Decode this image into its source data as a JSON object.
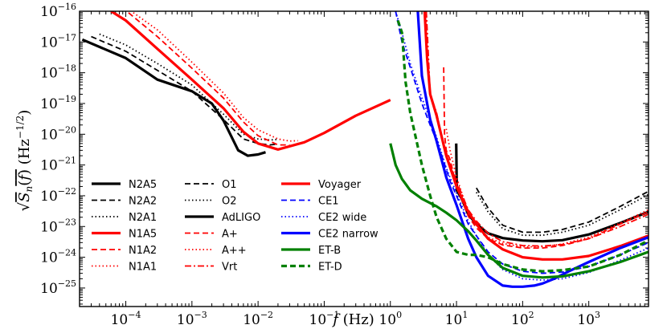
{
  "chart_data": {
    "type": "line",
    "title": "",
    "xlabel": "f (Hz)",
    "ylabel": "√S_n(f) (Hz^−1/2)",
    "xscale": "log",
    "yscale": "log",
    "xlim": [
      2e-05,
      8000
    ],
    "ylim": [
      2.5e-26,
      1e-16
    ],
    "x_tick_labels": [
      {
        "value": 0.0001,
        "base": "10",
        "exp": "−4"
      },
      {
        "value": 0.001,
        "base": "10",
        "exp": "−3"
      },
      {
        "value": 0.01,
        "base": "10",
        "exp": "−2"
      },
      {
        "value": 0.1,
        "base": "10",
        "exp": "−1"
      },
      {
        "value": 1,
        "base": "10",
        "exp": "0"
      },
      {
        "value": 10,
        "base": "10",
        "exp": "1"
      },
      {
        "value": 100,
        "base": "10",
        "exp": "2"
      },
      {
        "value": 1000,
        "base": "10",
        "exp": "3"
      }
    ],
    "y_tick_labels": [
      {
        "value": 1e-16,
        "base": "10",
        "exp": "−16"
      },
      {
        "value": 1e-17,
        "base": "10",
        "exp": "−17"
      },
      {
        "value": 1e-18,
        "base": "10",
        "exp": "−18"
      },
      {
        "value": 1e-19,
        "base": "10",
        "exp": "−19"
      },
      {
        "value": 1e-20,
        "base": "10",
        "exp": "−20"
      },
      {
        "value": 1e-21,
        "base": "10",
        "exp": "−21"
      },
      {
        "value": 1e-22,
        "base": "10",
        "exp": "−22"
      },
      {
        "value": 1e-23,
        "base": "10",
        "exp": "−23"
      },
      {
        "value": 1e-24,
        "base": "10",
        "exp": "−24"
      },
      {
        "value": 1e-25,
        "base": "10",
        "exp": "−25"
      }
    ],
    "series": [
      {
        "name": "N2A5",
        "color": "#000000",
        "style": "solid",
        "width": "thick",
        "x": [
          2.2e-05,
          0.0001,
          0.0003,
          0.001,
          0.002,
          0.003,
          0.005,
          0.007,
          0.01,
          0.013
        ],
        "y": [
          1.2e-17,
          3e-18,
          6e-19,
          2.5e-19,
          1e-19,
          2.8e-20,
          3e-21,
          2e-21,
          2.2e-21,
          2.6e-21
        ]
      },
      {
        "name": "N2A2",
        "color": "#000000",
        "style": "dashed",
        "width": "normal",
        "x": [
          3e-05,
          0.0001,
          0.0003,
          0.001,
          0.003,
          0.006,
          0.01,
          0.015,
          0.02
        ],
        "y": [
          1.5e-17,
          5e-18,
          1.2e-18,
          2.5e-19,
          3e-20,
          7e-21,
          5e-21,
          4.5e-21,
          4.8e-21
        ]
      },
      {
        "name": "N2A1",
        "color": "#000000",
        "style": "dotted",
        "width": "normal",
        "x": [
          4e-05,
          0.0001,
          0.0003,
          0.001,
          0.003,
          0.006,
          0.01,
          0.015,
          0.02
        ],
        "y": [
          1.8e-17,
          8e-18,
          2e-18,
          4e-19,
          4.5e-20,
          1e-20,
          7e-21,
          6.5e-21,
          6.8e-21
        ]
      },
      {
        "name": "N1A5",
        "color": "#ff0000",
        "style": "solid",
        "width": "thick",
        "x": [
          6e-05,
          0.0001,
          0.0003,
          0.001,
          0.003,
          0.006,
          0.01,
          0.02,
          0.05,
          0.1,
          0.3,
          1.0
        ],
        "y": [
          1e-16,
          5e-17,
          6e-18,
          6e-19,
          7e-20,
          1.2e-20,
          5e-21,
          3.2e-21,
          5.5e-21,
          1.1e-20,
          4e-20,
          1.3e-19
        ]
      },
      {
        "name": "N1A2",
        "color": "#ff0000",
        "style": "dashed",
        "width": "normal",
        "x": [
          0.00011,
          0.0003,
          0.001,
          0.003,
          0.006,
          0.01,
          0.02,
          0.03
        ],
        "y": [
          9e-17,
          1.5e-17,
          1.4e-18,
          1.5e-19,
          2.5e-20,
          9e-21,
          4.5e-21,
          4.5e-21
        ]
      },
      {
        "name": "N1A1",
        "color": "#ff0000",
        "style": "dotted",
        "width": "normal",
        "x": [
          0.00013,
          0.0003,
          0.001,
          0.003,
          0.006,
          0.01,
          0.02,
          0.03,
          0.04
        ],
        "y": [
          9e-17,
          2.5e-17,
          2.2e-18,
          2.2e-19,
          3.5e-20,
          1.4e-20,
          7e-21,
          6e-21,
          6.2e-21
        ]
      },
      {
        "name": "O1",
        "color": "#000000",
        "style": "dashed",
        "width": "normal",
        "x": [
          20,
          30,
          50,
          100,
          200,
          400,
          1000,
          3000,
          8000
        ],
        "y": [
          1.8e-22,
          4e-23,
          1.1e-23,
          6.5e-24,
          6.5e-24,
          8e-24,
          1.4e-23,
          4.5e-23,
          1.4e-22
        ]
      },
      {
        "name": "O2",
        "color": "#000000",
        "style": "dotted",
        "width": "normal",
        "x": [
          20,
          30,
          50,
          100,
          200,
          400,
          1000,
          3000,
          8000
        ],
        "y": [
          1.3e-22,
          3e-23,
          8.5e-24,
          5.2e-24,
          5.2e-24,
          6.5e-24,
          1.1e-23,
          3.5e-23,
          1.1e-22
        ]
      },
      {
        "name": "AdLIGO",
        "color": "#000000",
        "style": "solid",
        "width": "thick",
        "x": [
          9.9,
          10,
          10.1,
          12,
          15,
          20,
          30,
          50,
          100,
          200,
          400,
          1000,
          3000,
          8000
        ],
        "y": [
          5e-21,
          8e-22,
          1.5e-22,
          8e-23,
          2.5e-23,
          1.2e-23,
          6e-24,
          4.2e-24,
          3.5e-24,
          3.3e-24,
          3.6e-24,
          5.5e-24,
          1.3e-23,
          3e-23
        ]
      },
      {
        "name": "A+",
        "color": "#ff0000",
        "style": "dashed",
        "width": "normal",
        "x": [
          6.4,
          6.6,
          7,
          8,
          10,
          15,
          20,
          30,
          50,
          100,
          200,
          400,
          1000,
          3000,
          8000
        ],
        "y": [
          1.5e-18,
          1e-20,
          3e-21,
          1.5e-21,
          2e-22,
          2.2e-23,
          9e-24,
          4e-24,
          2.5e-24,
          2e-24,
          2e-24,
          2.4e-24,
          4e-24,
          1.2e-23,
          3e-23
        ]
      },
      {
        "name": "A++",
        "color": "#ff0000",
        "style": "dotted",
        "width": "normal",
        "x": [
          7,
          8,
          10,
          15,
          20,
          30,
          50,
          100,
          200,
          400,
          1000,
          3000,
          8000
        ],
        "y": [
          1.5e-20,
          3e-21,
          4e-22,
          3e-23,
          1.1e-23,
          4.5e-24,
          2.8e-24,
          2.2e-24,
          2.2e-24,
          2.7e-24,
          4.5e-24,
          1.3e-23,
          3.5e-23
        ]
      },
      {
        "name": "Vrt",
        "color": "#ff0000",
        "style": "dashdot",
        "width": "normal",
        "x": [
          3.5,
          4,
          5,
          6,
          8,
          10,
          15,
          20,
          30,
          50,
          100,
          200,
          400,
          1000,
          3000,
          8000
        ],
        "y": [
          1e-16,
          2e-19,
          5e-20,
          8e-21,
          1e-21,
          3e-22,
          3.5e-23,
          1.5e-23,
          6e-24,
          3.2e-24,
          2.4e-24,
          2.3e-24,
          2.6e-24,
          4e-24,
          1e-23,
          2.5e-23
        ]
      },
      {
        "name": "Voyager",
        "color": "#ff0000",
        "style": "solid",
        "width": "thick",
        "x": [
          3.3,
          3.6,
          4,
          5,
          7,
          10,
          15,
          20,
          30,
          50,
          100,
          200,
          400,
          1000,
          3000,
          8000
        ],
        "y": [
          1e-16,
          3e-18,
          2e-19,
          4e-20,
          2e-21,
          2e-22,
          3e-23,
          1.2e-23,
          4e-24,
          1.8e-24,
          1e-24,
          8.5e-25,
          8.5e-25,
          1.1e-24,
          2.3e-24,
          5e-24
        ]
      },
      {
        "name": "CE1",
        "color": "#0000ff",
        "style": "dashed",
        "width": "normal",
        "x": [
          1.2,
          1.5,
          2,
          3,
          4,
          5,
          6,
          8,
          10,
          15,
          20,
          30,
          50,
          100,
          200,
          400,
          1000,
          3000,
          8000
        ],
        "y": [
          1e-16,
          1e-17,
          1.5e-18,
          1e-19,
          2e-20,
          6e-21,
          2e-21,
          3e-22,
          1e-22,
          1.2e-23,
          5e-24,
          1.5e-24,
          6e-25,
          3.5e-25,
          3e-25,
          3.3e-25,
          5e-25,
          1.2e-24,
          3e-24
        ]
      },
      {
        "name": "CE2 wide",
        "color": "#0000ff",
        "style": "dotted",
        "width": "normal",
        "x": [
          1.2,
          1.5,
          2,
          3,
          4,
          5,
          7,
          10,
          15,
          20,
          30,
          50,
          100,
          200,
          400,
          1000,
          3000,
          8000
        ],
        "y": [
          1e-16,
          2e-17,
          2e-18,
          1.5e-19,
          3e-20,
          8e-21,
          8e-22,
          1.2e-22,
          1.5e-23,
          5e-24,
          1.2e-24,
          4e-25,
          2e-25,
          1.8e-25,
          2e-25,
          3.2e-25,
          8e-25,
          2e-24
        ]
      },
      {
        "name": "CE2 narrow",
        "color": "#0000ff",
        "style": "solid",
        "width": "thick",
        "x": [
          2.6,
          3,
          4,
          5,
          7,
          10,
          15,
          20,
          30,
          50,
          70,
          100,
          150,
          200,
          300,
          500,
          1000,
          3000,
          8000
        ],
        "y": [
          1e-16,
          8e-19,
          3e-20,
          6e-21,
          4e-22,
          5e-23,
          4e-24,
          1e-24,
          2.5e-25,
          1.2e-25,
          1.1e-25,
          1.1e-25,
          1.2e-25,
          1.4e-25,
          2e-25,
          3.5e-25,
          7e-25,
          2e-24,
          4.5e-24
        ]
      },
      {
        "name": "ET-B",
        "color": "#008000",
        "style": "solid",
        "width": "thick",
        "x": [
          1.0,
          1.2,
          1.5,
          2,
          3,
          5,
          7,
          10,
          15,
          20,
          30,
          50,
          100,
          200,
          400,
          1000,
          3000,
          8000
        ],
        "y": [
          5e-21,
          1e-21,
          3.5e-22,
          1.5e-22,
          8e-23,
          4.5e-23,
          2.8e-23,
          1.6e-23,
          7e-24,
          3.5e-24,
          1.2e-24,
          4.5e-25,
          2.5e-25,
          2.2e-25,
          2.4e-25,
          3.5e-25,
          7e-25,
          1.5e-24
        ]
      },
      {
        "name": "ET-D",
        "color": "#008000",
        "style": "dashed",
        "width": "thick",
        "x": [
          1.3,
          1.5,
          1.7,
          2,
          3,
          4,
          5,
          7,
          10,
          15,
          20,
          30,
          50,
          100,
          200,
          400,
          1000,
          3000,
          8000
        ],
        "y": [
          5e-17,
          2e-17,
          5e-19,
          5e-20,
          1e-21,
          1e-22,
          2e-23,
          4e-24,
          1.5e-24,
          1.2e-24,
          1.2e-24,
          1e-24,
          6e-25,
          4e-25,
          3.5e-25,
          3.8e-25,
          5e-25,
          1.2e-24,
          3.5e-24
        ]
      }
    ],
    "legend": {
      "placement": "lower-left",
      "columns": [
        [
          "N2A5",
          "N2A2",
          "N2A1",
          "N1A5",
          "N1A2",
          "N1A1"
        ],
        [
          "O1",
          "O2",
          "AdLIGO",
          "A+",
          "A++",
          "Vrt"
        ],
        [
          "Voyager",
          "CE1",
          "CE2 wide",
          "CE2 narrow",
          "ET-B",
          "ET-D"
        ]
      ]
    }
  }
}
